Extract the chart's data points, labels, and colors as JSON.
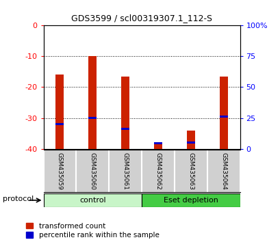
{
  "title": "GDS3599 / scl00319307.1_112-S",
  "categories": [
    "GSM435059",
    "GSM435060",
    "GSM435061",
    "GSM435062",
    "GSM435063",
    "GSM435064"
  ],
  "red_top": [
    -16.0,
    -10.0,
    -16.5,
    -38.5,
    -34.0,
    -16.5
  ],
  "red_bottom": [
    -40,
    -40,
    -40,
    -40,
    -40,
    -40
  ],
  "blue_marker": [
    -32.0,
    -30.0,
    -33.5,
    -38.2,
    -38.0,
    -29.5
  ],
  "ylim_left": [
    -40,
    0
  ],
  "ylim_right": [
    0,
    100
  ],
  "left_ticks": [
    0,
    -10,
    -20,
    -30,
    -40
  ],
  "right_ticks": [
    0,
    25,
    50,
    75,
    100
  ],
  "groups": [
    {
      "label": "control",
      "cols": 3,
      "color": "#c8f5c8"
    },
    {
      "label": "Eset depletion",
      "cols": 3,
      "color": "#44cc44"
    }
  ],
  "bar_color": "#cc2200",
  "blue_color": "#0000cc",
  "bg_color": "#ffffff",
  "plot_bg": "#ffffff",
  "label_area_color": "#d0d0d0",
  "legend_items": [
    "transformed count",
    "percentile rank within the sample"
  ],
  "bar_width": 0.25
}
